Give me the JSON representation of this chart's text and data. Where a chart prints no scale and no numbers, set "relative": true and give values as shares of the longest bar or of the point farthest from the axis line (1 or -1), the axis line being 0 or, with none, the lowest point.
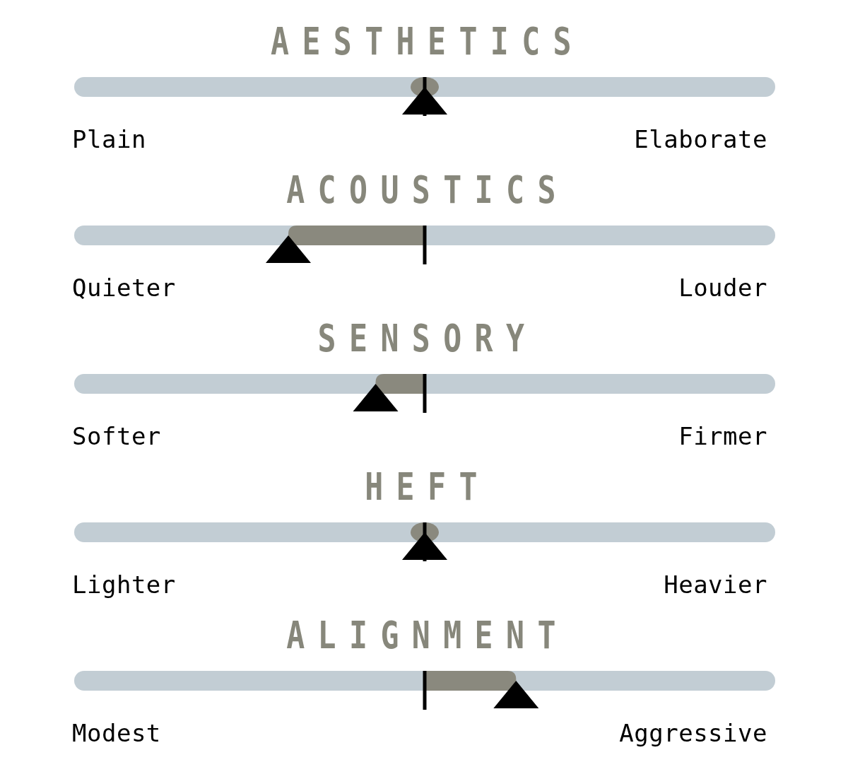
{
  "chart_data": {
    "type": "bar",
    "orientation": "horizontal",
    "relative": true,
    "categories": [
      "AESTHETICS",
      "ACOUSTICS",
      "SENSORY",
      "HEFT",
      "ALIGNMENT"
    ],
    "values": [
      0,
      -1,
      -0.36,
      0,
      0.67
    ],
    "color": "#8a897e",
    "marker": "triangle",
    "annotations": [
      "Plain",
      "Elaborate",
      "Quieter",
      "Louder",
      "Softer",
      "Firmer",
      "Lighter",
      "Heavier",
      "Modest",
      "Aggressive"
    ]
  }
}
